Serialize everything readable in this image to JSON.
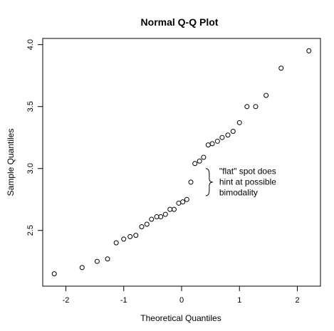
{
  "chart_data": {
    "type": "scatter",
    "title": "Normal Q-Q Plot",
    "xlabel": "Theoretical Quantiles",
    "ylabel": "Sample Quantiles",
    "xlim": [
      -2.4,
      2.4
    ],
    "ylim": [
      2.05,
      4.05
    ],
    "xticks": [
      -2,
      -1,
      0,
      1,
      2
    ],
    "xtick_labels": [
      "-2",
      "-1",
      "0",
      "1",
      "2"
    ],
    "yticks": [
      2.5,
      3.0,
      3.5,
      4.0
    ],
    "ytick_labels": [
      "2.5",
      "3.0",
      "3.5",
      "4.0"
    ],
    "grid": false,
    "points": [
      {
        "x": -2.2,
        "y": 2.15
      },
      {
        "x": -1.72,
        "y": 2.2
      },
      {
        "x": -1.46,
        "y": 2.25
      },
      {
        "x": -1.28,
        "y": 2.27
      },
      {
        "x": -1.13,
        "y": 2.4
      },
      {
        "x": -1.0,
        "y": 2.43
      },
      {
        "x": -0.89,
        "y": 2.45
      },
      {
        "x": -0.79,
        "y": 2.46
      },
      {
        "x": -0.69,
        "y": 2.53
      },
      {
        "x": -0.6,
        "y": 2.55
      },
      {
        "x": -0.52,
        "y": 2.59
      },
      {
        "x": -0.43,
        "y": 2.61
      },
      {
        "x": -0.36,
        "y": 2.61
      },
      {
        "x": -0.28,
        "y": 2.63
      },
      {
        "x": -0.2,
        "y": 2.67
      },
      {
        "x": -0.13,
        "y": 2.67
      },
      {
        "x": -0.05,
        "y": 2.72
      },
      {
        "x": 0.02,
        "y": 2.73
      },
      {
        "x": 0.09,
        "y": 2.75
      },
      {
        "x": 0.16,
        "y": 2.89
      },
      {
        "x": 0.23,
        "y": 3.04
      },
      {
        "x": 0.31,
        "y": 3.06
      },
      {
        "x": 0.38,
        "y": 3.09
      },
      {
        "x": 0.46,
        "y": 3.19
      },
      {
        "x": 0.53,
        "y": 3.2
      },
      {
        "x": 0.62,
        "y": 3.22
      },
      {
        "x": 0.7,
        "y": 3.25
      },
      {
        "x": 0.8,
        "y": 3.27
      },
      {
        "x": 0.89,
        "y": 3.3
      },
      {
        "x": 1.0,
        "y": 3.37
      },
      {
        "x": 1.13,
        "y": 3.5
      },
      {
        "x": 1.28,
        "y": 3.5
      },
      {
        "x": 1.46,
        "y": 3.59
      },
      {
        "x": 1.72,
        "y": 3.81
      },
      {
        "x": 2.2,
        "y": 3.95
      }
    ],
    "annotation": {
      "lines": [
        "\"flat\" spot does",
        "hint at possible",
        "bimodality"
      ],
      "brace_x": 0.38,
      "brace_y_range": [
        2.78,
        3.0
      ]
    },
    "colors": {
      "point_stroke": "#000000",
      "axis": "#000000",
      "text": "#000000"
    }
  }
}
